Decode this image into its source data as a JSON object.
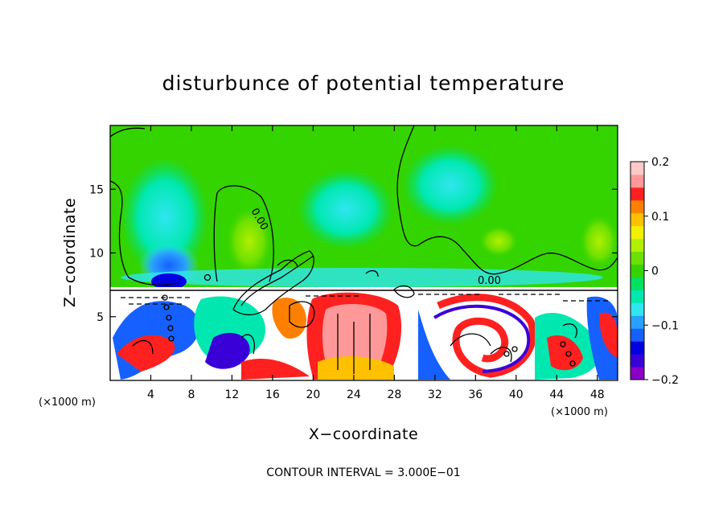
{
  "chart_data": {
    "type": "heatmap",
    "title": "disturbunce of potential temperature",
    "xlabel": "X−coordinate",
    "ylabel": "Z−coordinate",
    "x_unit_left": "(×1000 m)",
    "x_unit_right": "(×1000 m)",
    "xlim": [
      0,
      50
    ],
    "ylim": [
      0,
      20
    ],
    "x_ticks": [
      4,
      8,
      12,
      16,
      20,
      24,
      28,
      32,
      36,
      40,
      44,
      48
    ],
    "x_tick_labels": [
      "4",
      "8",
      "12",
      "16",
      "20",
      "24",
      "28",
      "32",
      "36",
      "40",
      "44",
      "48"
    ],
    "y_ticks": [
      5,
      10,
      15
    ],
    "y_tick_labels": [
      "5",
      "10",
      "15"
    ],
    "colorbar": {
      "min": -0.2,
      "max": 0.2,
      "ticks": [
        0.2,
        0.1,
        0,
        -0.1,
        -0.2
      ],
      "tick_labels": [
        "0.2",
        "0.1",
        "0",
        "−0.1",
        "−0.2"
      ],
      "colors": [
        "#8a00c8",
        "#3a00d8",
        "#0000e0",
        "#1660ff",
        "#2aa0ff",
        "#30e6f0",
        "#00e8b0",
        "#00e060",
        "#34d400",
        "#6ce000",
        "#b0f000",
        "#f0f000",
        "#ffc000",
        "#ff8000",
        "#ff2020",
        "#ff9898",
        "#ffc8c8"
      ]
    },
    "contour_labels": [
      "0.00",
      "0.00"
    ],
    "contour_interval_text": "CONTOUR INTERVAL = 3.000E−01",
    "layers": {
      "upper_background": 0.0,
      "inversion_height": 7.4,
      "lower_layer_range": [
        -0.2,
        0.2
      ]
    }
  }
}
